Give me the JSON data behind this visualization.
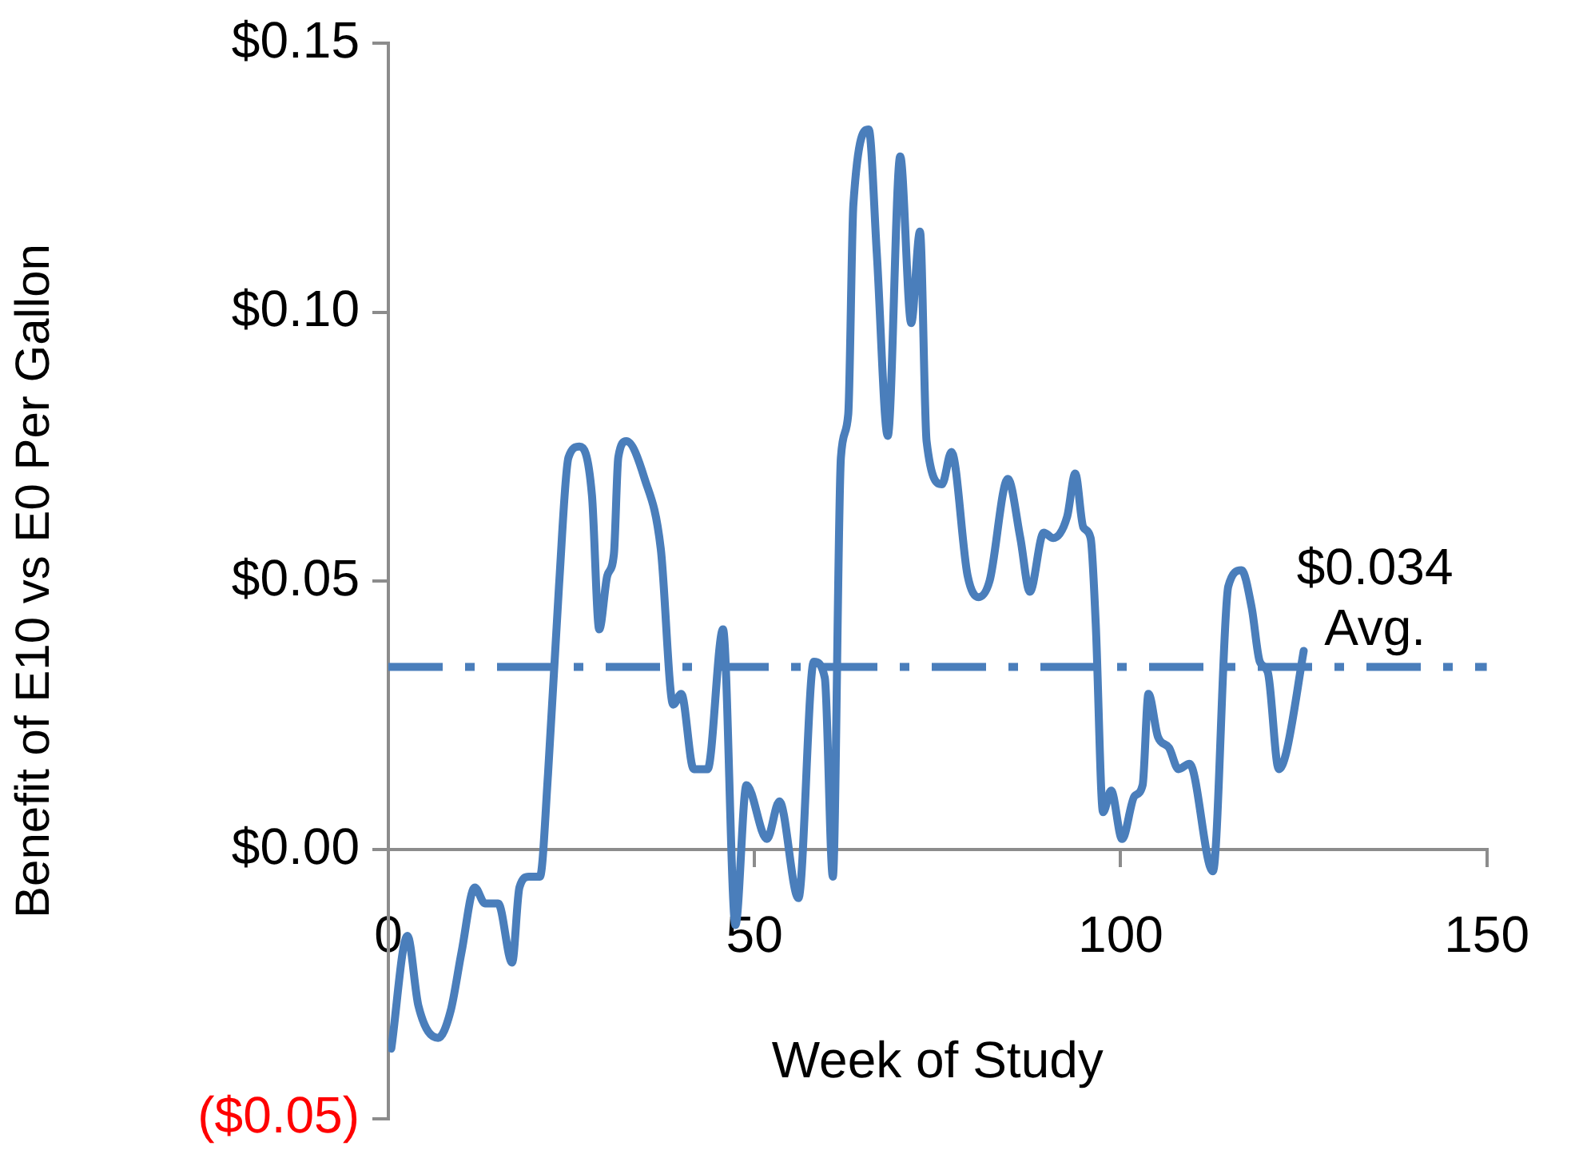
{
  "chart_data": {
    "type": "line",
    "xlabel": "Week of Study",
    "ylabel": "Benefit of E10 vs E0 Per Gallon",
    "xlim": [
      0,
      150
    ],
    "xticks": [
      0,
      50,
      100,
      150
    ],
    "ylim": [
      -0.05,
      0.15
    ],
    "yticks": [
      {
        "value": -0.05,
        "label": "($0.05)"
      },
      {
        "value": 0,
        "label": "$0.00"
      },
      {
        "value": 0.05,
        "label": "$0.05"
      },
      {
        "value": 0.1,
        "label": "$0.10"
      },
      {
        "value": 0.15,
        "label": "$0.15"
      }
    ],
    "grid": false,
    "legend": false,
    "marker": "none",
    "series": [
      {
        "color": "#4a7ebb",
        "x": [
          0.4,
          2.6,
          4.1,
          6.8,
          8.5,
          10,
          11.8,
          13.2,
          15,
          16.9,
          17.9,
          19.2,
          20.7,
          21.8,
          23.3,
          24.6,
          26.1,
          27.8,
          28.8,
          29.9,
          30.8,
          31.4,
          32.5,
          35,
          37.2,
          38.9,
          40,
          41.7,
          43.6,
          45.7,
          47.4,
          48.9,
          51.7,
          53.4,
          56,
          58.1,
          59.6,
          60.7,
          61.8,
          62.8,
          63.5,
          65.6,
          66.7,
          68.2,
          69.9,
          71.4,
          72.6,
          73.5,
          75.6,
          76.9,
          79.1,
          80.6,
          82.1,
          84.6,
          86.3,
          87.6,
          89.5,
          90.8,
          92.7,
          93.8,
          94.9,
          95.9,
          96.6,
          97.6,
          98.7,
          100.2,
          101.9,
          103,
          103.8,
          105.1,
          106.6,
          107.9,
          109.4,
          112.6,
          114.7,
          116.5,
          117.9,
          119,
          120.1,
          121.6,
          122.6,
          125
        ],
        "values": [
          -0.037,
          -0.016,
          -0.029,
          -0.035,
          -0.03,
          -0.019,
          -0.007,
          -0.01,
          -0.01,
          -0.021,
          -0.007,
          -0.005,
          -0.005,
          0.014,
          0.049,
          0.073,
          0.075,
          0.066,
          0.041,
          0.051,
          0.055,
          0.073,
          0.076,
          0.069,
          0.056,
          0.027,
          0.029,
          0.015,
          0.015,
          0.041,
          -0.014,
          0.012,
          0.002,
          0.009,
          -0.009,
          0.035,
          0.032,
          -0.005,
          0.073,
          0.081,
          0.12,
          0.134,
          0.111,
          0.077,
          0.129,
          0.098,
          0.115,
          0.076,
          0.068,
          0.074,
          0.051,
          0.047,
          0.05,
          0.069,
          0.058,
          0.048,
          0.059,
          0.058,
          0.062,
          0.07,
          0.06,
          0.058,
          0.042,
          0.007,
          0.011,
          0.002,
          0.01,
          0.012,
          0.029,
          0.021,
          0.019,
          0.015,
          0.016,
          -0.004,
          0.049,
          0.052,
          0.045,
          0.035,
          0.033,
          0.015,
          0.018,
          0.037
        ]
      }
    ],
    "ref_lines": [
      {
        "axis": "y",
        "value": 0.034,
        "label": "$0.034 Avg.",
        "color": "#4a7ebb",
        "line_style": "dashed"
      }
    ]
  }
}
